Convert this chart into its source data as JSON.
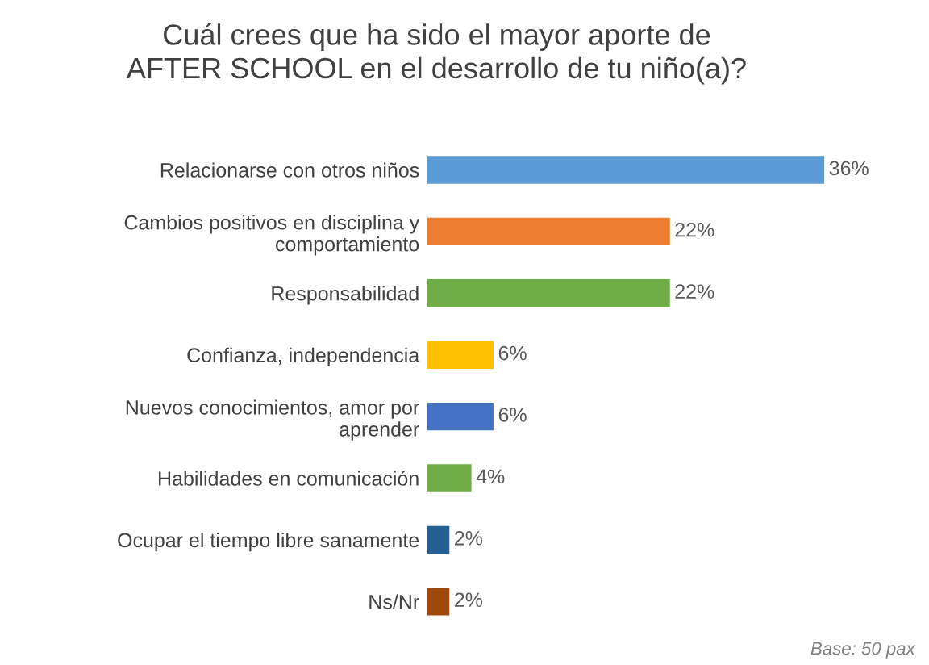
{
  "chart_data": {
    "type": "bar",
    "orientation": "horizontal",
    "title": "Cuál crees que ha sido el mayor aporte de AFTER SCHOOL en el desarrollo de tu niño(a)?",
    "categories": [
      "Relacionarse con otros niños",
      "Cambios positivos en disciplina y comportamiento",
      "Responsabilidad",
      "Confianza, independencia",
      "Nuevos conocimientos, amor por aprender",
      "Habilidades en comunicación",
      "Ocupar el tiempo libre sanamente",
      "Ns/Nr"
    ],
    "values": [
      36,
      22,
      22,
      6,
      6,
      4,
      2,
      2
    ],
    "colors": [
      "#5b9bd5",
      "#ed7d31",
      "#70ad47",
      "#ffc000",
      "#4472c4",
      "#70ad47",
      "#255e91",
      "#9e480e"
    ],
    "value_labels": [
      "36%",
      "22%",
      "22%",
      "6%",
      "6%",
      "4%",
      "2%",
      "2%"
    ],
    "annotations": [
      "Base: 50 pax"
    ]
  }
}
